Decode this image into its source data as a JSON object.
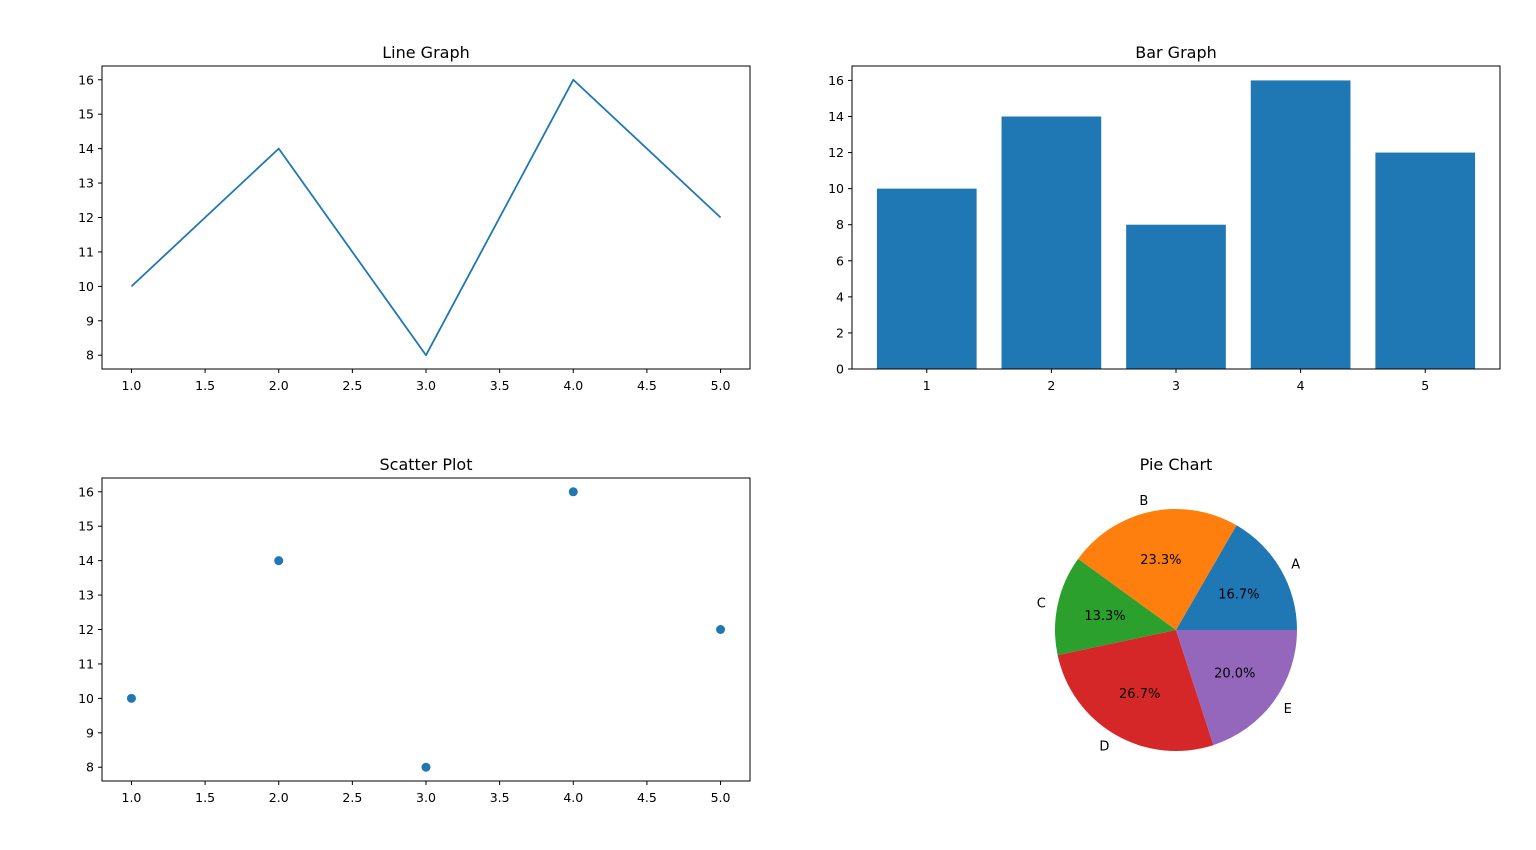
{
  "chart_data": [
    {
      "type": "line",
      "title": "Line Graph",
      "xlabel": "",
      "ylabel": "",
      "x": [
        1,
        2,
        3,
        4,
        5
      ],
      "series": [
        {
          "values": [
            10,
            14,
            8,
            16,
            12
          ]
        }
      ],
      "xlim": [
        0.8,
        5.2
      ],
      "ylim": [
        7.6,
        16.4
      ],
      "xticks": [
        1.0,
        1.5,
        2.0,
        2.5,
        3.0,
        3.5,
        4.0,
        4.5,
        5.0
      ],
      "xtick_labels": [
        "1.0",
        "1.5",
        "2.0",
        "2.5",
        "3.0",
        "3.5",
        "4.0",
        "4.5",
        "5.0"
      ],
      "yticks": [
        8,
        9,
        10,
        11,
        12,
        13,
        14,
        15,
        16
      ],
      "ytick_labels": [
        "8",
        "9",
        "10",
        "11",
        "12",
        "13",
        "14",
        "15",
        "16"
      ],
      "grid": false,
      "color": "#1f77b4"
    },
    {
      "type": "bar",
      "title": "Bar Graph",
      "xlabel": "",
      "ylabel": "",
      "categories": [
        "1",
        "2",
        "3",
        "4",
        "5"
      ],
      "values": [
        10,
        14,
        8,
        16,
        12
      ],
      "ylim": [
        0,
        16.8
      ],
      "yticks": [
        0,
        2,
        4,
        6,
        8,
        10,
        12,
        14,
        16
      ],
      "ytick_labels": [
        "0",
        "2",
        "4",
        "6",
        "8",
        "10",
        "12",
        "14",
        "16"
      ],
      "grid": false,
      "color": "#1f77b4"
    },
    {
      "type": "scatter",
      "title": "Scatter Plot",
      "xlabel": "",
      "ylabel": "",
      "x": [
        1,
        2,
        3,
        4,
        5
      ],
      "series": [
        {
          "values": [
            10,
            14,
            8,
            16,
            12
          ]
        }
      ],
      "xlim": [
        0.8,
        5.2
      ],
      "ylim": [
        7.6,
        16.4
      ],
      "xticks": [
        1.0,
        1.5,
        2.0,
        2.5,
        3.0,
        3.5,
        4.0,
        4.5,
        5.0
      ],
      "xtick_labels": [
        "1.0",
        "1.5",
        "2.0",
        "2.5",
        "3.0",
        "3.5",
        "4.0",
        "4.5",
        "5.0"
      ],
      "yticks": [
        8,
        9,
        10,
        11,
        12,
        13,
        14,
        15,
        16
      ],
      "ytick_labels": [
        "8",
        "9",
        "10",
        "11",
        "12",
        "13",
        "14",
        "15",
        "16"
      ],
      "grid": false,
      "color": "#1f77b4"
    },
    {
      "type": "pie",
      "title": "Pie Chart",
      "labels": [
        "A",
        "B",
        "C",
        "D",
        "E"
      ],
      "values": [
        10,
        14,
        8,
        16,
        12
      ],
      "pct_labels": [
        "16.7%",
        "23.3%",
        "13.3%",
        "26.7%",
        "20.0%"
      ],
      "colors": [
        "#1f77b4",
        "#ff7f0e",
        "#2ca02c",
        "#d62728",
        "#9467bd"
      ]
    }
  ]
}
